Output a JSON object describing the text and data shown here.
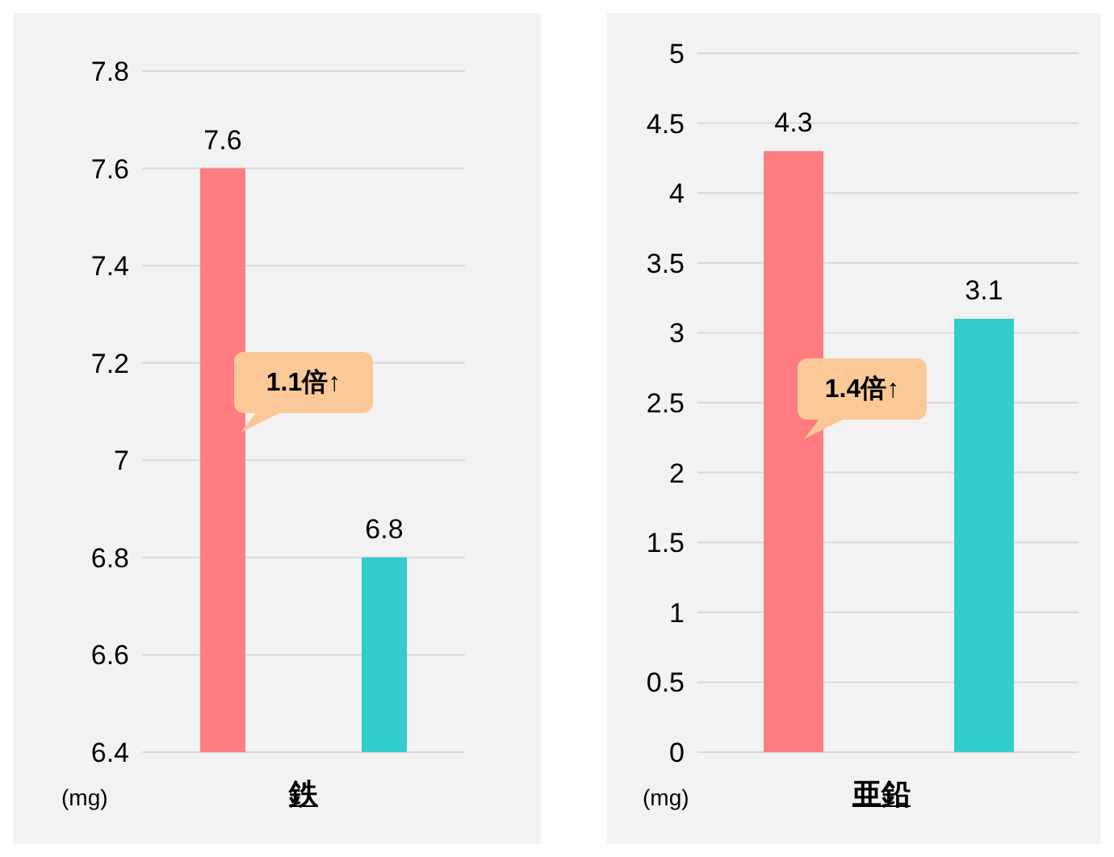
{
  "chart_data": [
    {
      "type": "bar",
      "categories": [
        null,
        null
      ],
      "values": [
        7.6,
        6.8
      ],
      "colors": [
        "#ff7c80",
        "#33cccc"
      ],
      "ylim": [
        6.4,
        7.8
      ],
      "yticks": [
        6.4,
        6.6,
        6.8,
        7,
        7.2,
        7.4,
        7.6,
        7.8
      ],
      "grid": "y",
      "data_labels": true,
      "xlabel": "鉄",
      "ylabel": "(mg)",
      "annotations": [
        "1.1倍↑"
      ]
    },
    {
      "type": "bar",
      "categories": [
        null,
        null
      ],
      "values": [
        4.3,
        3.1
      ],
      "colors": [
        "#ff7c80",
        "#33cccc"
      ],
      "ylim": [
        0,
        5
      ],
      "yticks": [
        0,
        0.5,
        1,
        1.5,
        2,
        2.5,
        3,
        3.5,
        4,
        4.5,
        5
      ],
      "grid": "y",
      "data_labels": true,
      "xlabel": "亜鉛",
      "ylabel": "(mg)",
      "annotations": [
        "1.4倍↑"
      ]
    }
  ]
}
